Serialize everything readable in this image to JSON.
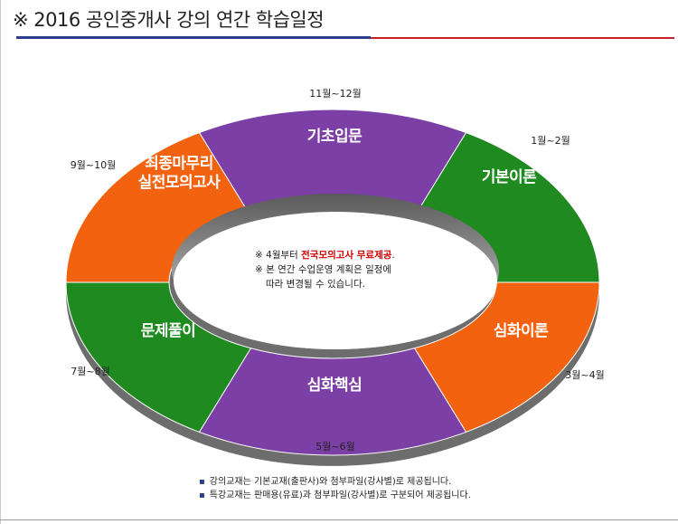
{
  "header": {
    "title": "※ 2016 공인중개사 강의 연간 학습일정"
  },
  "cycle": [
    {
      "label": "기초입문",
      "period": "11월~12월",
      "color": "#7b3fa6"
    },
    {
      "label": "기본이론",
      "period": "1월~2월",
      "color": "#1f8a1f"
    },
    {
      "label": "심화이론",
      "period": "3월~4월",
      "color": "#f2620f"
    },
    {
      "label": "심화핵심",
      "period": "5월~6월",
      "color": "#7b3fa6"
    },
    {
      "label": "문제풀이",
      "period": "7월~8월",
      "color": "#1f8a1f"
    },
    {
      "label": "최종마무리 실전모의고사",
      "label_lines": [
        "최종마무리",
        "실전모의고사"
      ],
      "period": "9월~10월",
      "color": "#f2620f"
    }
  ],
  "center_note": {
    "line1_prefix": "※ 4월부터 ",
    "line1_highlight": "전국모의고사 무료제공",
    "line1_suffix": ".",
    "line2": "※ 본 연간 수업운영 계획은 일정에",
    "line3": "따라 변경될 수 있습니다."
  },
  "footnotes": [
    "강의교재는 기본교재(출판사)와 첨부파일(강사별)로 제공됩니다.",
    "특강교재는 판매용(유료)과 첨부파일(강사별)로 구분되어 제공됩니다."
  ],
  "colors": {
    "purple": "#7b3fa6",
    "green": "#1f8a1f",
    "orange": "#f2620f",
    "title_rule_blue": "#2b3f8f",
    "title_rule_red": "#c4212b",
    "highlight": "#d10000"
  }
}
